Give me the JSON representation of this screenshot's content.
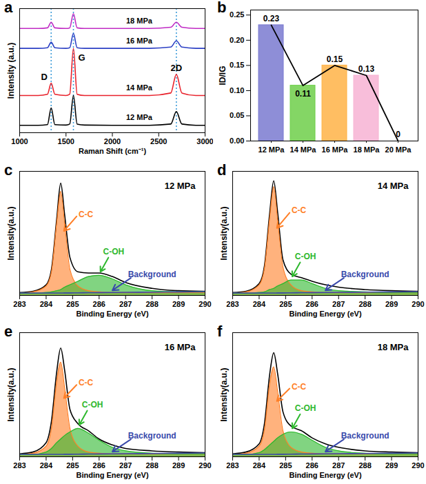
{
  "chart_data": [
    {
      "panel": "a",
      "type": "line",
      "xlabel": "Raman Shift (cm⁻¹)",
      "ylabel": "Intensity (a.u.)",
      "x": [
        1000,
        1200,
        1300,
        1340,
        1380,
        1500,
        1540,
        1580,
        1620,
        1700,
        2000,
        2400,
        2630,
        2690,
        2750,
        2900,
        3000
      ],
      "xlim": [
        1000,
        3000
      ],
      "xticks": [
        1000,
        1500,
        2000,
        2500,
        3000
      ],
      "ylim": [
        0,
        100
      ],
      "yticks": [],
      "tick_labels": "x",
      "vlines": [
        {
          "value": 1340,
          "label": "D"
        },
        {
          "value": 1580,
          "label": "G"
        },
        {
          "value": 2690,
          "label": "2D"
        }
      ],
      "series": [
        {
          "name": "12 MPa",
          "color": "#000000",
          "values": [
            6,
            6,
            6.5,
            20,
            6.5,
            6.2,
            7,
            30,
            7,
            6.2,
            6,
            6,
            7,
            17,
            7,
            6,
            6
          ]
        },
        {
          "name": "14 MPa",
          "color": "#e8202a",
          "values": [
            30,
            30,
            31,
            40,
            31,
            30,
            31,
            68,
            31,
            30,
            30,
            30,
            32,
            47,
            32,
            30,
            30
          ]
        },
        {
          "name": "16 MPa",
          "color": "#2b3fc4",
          "values": [
            68,
            68,
            68.5,
            73,
            68.5,
            68,
            68.5,
            80,
            68.5,
            68,
            68,
            68,
            69,
            74,
            69,
            68,
            68
          ]
        },
        {
          "name": "18 MPa",
          "color": "#c02bc4",
          "values": [
            84,
            84,
            84.5,
            89,
            84.5,
            84,
            84.5,
            96,
            84.5,
            84,
            84,
            84,
            85,
            89,
            85,
            84,
            84
          ]
        }
      ]
    },
    {
      "panel": "b",
      "type": "bar",
      "ylabel": "ID/IG",
      "categories": [
        "12 MPa",
        "14 MPa",
        "16 MPa",
        "18 MPa",
        "20 MPa"
      ],
      "ylim": [
        0,
        0.26
      ],
      "yticks": [
        {
          "value": 0,
          "label": "0.00"
        },
        {
          "value": 0.05,
          "label": "0.05"
        },
        {
          "value": 0.1,
          "label": "0.10"
        },
        {
          "value": 0.15,
          "label": "0.15"
        },
        {
          "value": 0.2,
          "label": "0.20"
        },
        {
          "value": 0.25,
          "label": "0.25"
        }
      ],
      "data_labels": true,
      "series": [
        {
          "type": "bar",
          "colors": [
            "#7a7ad0",
            "#6fcf4a",
            "#ffb347",
            "#f7b3d3",
            "#cccccc"
          ],
          "values": [
            0.23,
            0.11,
            0.15,
            0.13,
            0
          ]
        },
        {
          "type": "line",
          "color": "#000000",
          "values": [
            0.23,
            0.11,
            0.15,
            0.13,
            0
          ]
        }
      ]
    },
    {
      "panel": "c",
      "type": "line",
      "title": "12 MPa",
      "xlabel": "Binding Energy (eV)",
      "ylabel": "Intensity(a.u.)",
      "x": [
        283,
        283.5,
        284,
        284.2,
        284.4,
        284.55,
        284.7,
        284.9,
        285.2,
        285.6,
        286,
        286.5,
        287,
        288,
        289,
        290
      ],
      "xlim": [
        283,
        290
      ],
      "xticks": [
        283,
        284,
        285,
        286,
        287,
        288,
        289,
        290
      ],
      "ylim": [
        0,
        105
      ],
      "yticks": [],
      "tick_labels": "x",
      "series": [
        {
          "color": "#000000",
          "values": [
            2.5,
            3.5,
            9,
            22,
            65,
            95,
            68,
            32,
            20,
            19,
            19,
            16,
            11,
            6,
            4,
            3.5
          ]
        },
        {
          "name": "C-C",
          "type": "area",
          "color": "#ff7f27",
          "values": [
            2,
            3,
            8,
            20,
            62,
            88,
            60,
            22,
            8,
            4,
            3,
            2.5,
            2.5,
            2.5,
            2.5,
            2.5
          ]
        },
        {
          "name": "C-OH",
          "type": "area",
          "color": "#2db82d",
          "values": [
            2,
            2,
            2.5,
            3,
            4,
            5,
            7,
            9,
            12,
            16,
            17,
            14,
            9,
            4,
            3,
            3
          ]
        },
        {
          "name": "Background",
          "color": "#3949ab",
          "values": [
            2,
            2,
            2,
            2,
            2,
            2,
            2.1,
            2.1,
            2.2,
            2.3,
            2.4,
            2.5,
            2.6,
            2.8,
            3,
            3.2
          ]
        }
      ]
    },
    {
      "panel": "d",
      "type": "line",
      "title": "14 MPa",
      "xlabel": "Binding Energy (eV)",
      "ylabel": "Intensity(a.u.)",
      "x": [
        283,
        283.5,
        284,
        284.2,
        284.4,
        284.55,
        284.7,
        284.9,
        285.2,
        285.6,
        286,
        286.5,
        287,
        288,
        289,
        290
      ],
      "xlim": [
        283,
        290
      ],
      "xticks": [
        283,
        284,
        285,
        286,
        287,
        288,
        289,
        290
      ],
      "ylim": [
        0,
        105
      ],
      "yticks": [],
      "tick_labels": "x",
      "series": [
        {
          "color": "#000000",
          "values": [
            2.5,
            3.5,
            10,
            25,
            70,
            97,
            70,
            30,
            18,
            15,
            12,
            9,
            7,
            5,
            4,
            3.5
          ]
        },
        {
          "name": "C-C",
          "type": "area",
          "color": "#ff7f27",
          "values": [
            2,
            3,
            9,
            23,
            66,
            92,
            63,
            24,
            9,
            4,
            3,
            2.5,
            2.5,
            2.5,
            2.5,
            2.5
          ]
        },
        {
          "name": "C-OH",
          "type": "area",
          "color": "#2db82d",
          "values": [
            2,
            2,
            2.5,
            3,
            5,
            6,
            8,
            10,
            13,
            13,
            10,
            6,
            4,
            3,
            2.5,
            2.5
          ]
        },
        {
          "name": "Background",
          "color": "#3949ab",
          "values": [
            2,
            2,
            2,
            2,
            2,
            2,
            2.1,
            2.1,
            2.2,
            2.3,
            2.4,
            2.5,
            2.6,
            2.8,
            3,
            3.2
          ]
        }
      ]
    },
    {
      "panel": "e",
      "type": "line",
      "title": "16 MPa",
      "xlabel": "Binding Energy (eV)",
      "ylabel": "Intensity(a.u.)",
      "x": [
        283,
        283.5,
        284,
        284.2,
        284.4,
        284.55,
        284.7,
        284.9,
        285.2,
        285.6,
        286,
        286.5,
        287,
        288,
        289,
        290
      ],
      "xlim": [
        283,
        290
      ],
      "xticks": [
        283,
        284,
        285,
        286,
        287,
        288,
        289,
        290
      ],
      "ylim": [
        0,
        105
      ],
      "yticks": [],
      "tick_labels": "x",
      "series": [
        {
          "color": "#000000",
          "values": [
            2.5,
            4,
            12,
            30,
            72,
            92,
            73,
            40,
            28,
            22,
            15,
            10,
            7,
            5,
            4,
            3.5
          ]
        },
        {
          "name": "C-C",
          "type": "area",
          "color": "#ff7f27",
          "values": [
            2,
            3,
            9,
            24,
            64,
            80,
            58,
            24,
            9,
            4,
            3,
            2.5,
            2.5,
            2.5,
            2.5,
            2.5
          ]
        },
        {
          "name": "C-OH",
          "type": "area",
          "color": "#2db82d",
          "values": [
            2,
            2,
            4,
            7,
            12,
            15,
            18,
            21,
            24,
            20,
            14,
            8,
            5,
            3,
            2.5,
            2.5
          ]
        },
        {
          "name": "Background",
          "color": "#3949ab",
          "values": [
            2,
            2,
            2,
            2,
            2,
            2,
            2.1,
            2.1,
            2.2,
            2.3,
            2.4,
            2.5,
            2.6,
            2.8,
            3,
            3.2
          ]
        }
      ]
    },
    {
      "panel": "f",
      "type": "line",
      "title": "18 MPa",
      "xlabel": "Binding Energy (eV)",
      "ylabel": "Intensity(a.u.)",
      "x": [
        283,
        283.5,
        284,
        284.2,
        284.4,
        284.55,
        284.7,
        284.9,
        285.2,
        285.6,
        286,
        286.5,
        287,
        288,
        289,
        290
      ],
      "xlim": [
        283,
        290
      ],
      "xticks": [
        283,
        284,
        285,
        286,
        287,
        288,
        289,
        290
      ],
      "ylim": [
        0,
        105
      ],
      "yticks": [],
      "tick_labels": "x",
      "series": [
        {
          "color": "#000000",
          "values": [
            2.5,
            4,
            11,
            28,
            70,
            88,
            70,
            38,
            26,
            22,
            16,
            11,
            8,
            5,
            4,
            3.5
          ]
        },
        {
          "name": "C-C",
          "type": "area",
          "color": "#ff7f27",
          "values": [
            2,
            3,
            9,
            23,
            62,
            76,
            55,
            22,
            8,
            4,
            3,
            2.5,
            2.5,
            2.5,
            2.5,
            2.5
          ]
        },
        {
          "name": "C-OH",
          "type": "area",
          "color": "#2db82d",
          "values": [
            2,
            2,
            3.5,
            6,
            10,
            13,
            16,
            19,
            21,
            19,
            14,
            8,
            5,
            3,
            2.5,
            2.5
          ]
        },
        {
          "name": "Background",
          "color": "#3949ab",
          "values": [
            2,
            2,
            2,
            2,
            2,
            2,
            2.1,
            2.1,
            2.2,
            2.3,
            2.4,
            2.5,
            2.6,
            2.8,
            3,
            3.2
          ]
        }
      ]
    }
  ]
}
